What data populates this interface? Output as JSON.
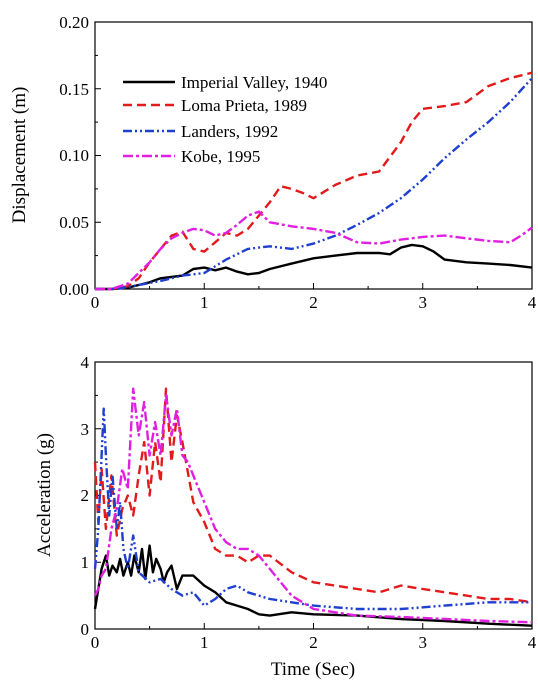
{
  "chart_data": [
    {
      "type": "line",
      "xlabel": "",
      "ylabel": "Displacement (m)",
      "xlim": [
        0,
        4
      ],
      "ylim": [
        0,
        0.2
      ],
      "xticks": [
        "0",
        "1",
        "2",
        "3",
        "4"
      ],
      "yticks": [
        "0.00",
        "0.05",
        "0.10",
        "0.15",
        "0.20"
      ],
      "grid": false,
      "legend_position": "top-left",
      "series": [
        {
          "name": "Imperial Valley, 1940",
          "color": "#000000",
          "dash": "solid",
          "x": [
            0,
            0.15,
            0.3,
            0.4,
            0.5,
            0.6,
            0.7,
            0.8,
            0.9,
            1.0,
            1.1,
            1.2,
            1.3,
            1.4,
            1.5,
            1.6,
            1.8,
            2.0,
            2.2,
            2.4,
            2.6,
            2.7,
            2.8,
            2.9,
            3.0,
            3.1,
            3.2,
            3.4,
            3.6,
            3.8,
            4.0
          ],
          "y": [
            0,
            0,
            0.001,
            0.003,
            0.005,
            0.008,
            0.009,
            0.01,
            0.015,
            0.016,
            0.014,
            0.016,
            0.013,
            0.011,
            0.012,
            0.015,
            0.019,
            0.023,
            0.025,
            0.027,
            0.027,
            0.026,
            0.031,
            0.033,
            0.032,
            0.028,
            0.022,
            0.02,
            0.019,
            0.018,
            0.016
          ]
        },
        {
          "name": "Loma Prieta, 1989",
          "color": "#e31a1c",
          "dash": "dashed",
          "x": [
            0,
            0.15,
            0.3,
            0.4,
            0.5,
            0.6,
            0.7,
            0.8,
            0.9,
            1.0,
            1.1,
            1.2,
            1.3,
            1.4,
            1.5,
            1.6,
            1.7,
            1.8,
            1.9,
            2.0,
            2.2,
            2.4,
            2.6,
            2.8,
            2.9,
            3.0,
            3.2,
            3.4,
            3.6,
            3.8,
            3.9,
            4.0
          ],
          "y": [
            0,
            0,
            0.002,
            0.008,
            0.02,
            0.03,
            0.04,
            0.043,
            0.03,
            0.028,
            0.035,
            0.042,
            0.04,
            0.045,
            0.055,
            0.065,
            0.077,
            0.075,
            0.072,
            0.068,
            0.078,
            0.085,
            0.088,
            0.11,
            0.125,
            0.135,
            0.137,
            0.14,
            0.152,
            0.158,
            0.16,
            0.162
          ]
        },
        {
          "name": "Landers, 1992",
          "color": "#1f3fd1",
          "dash": "dash-dot-dot",
          "x": [
            0,
            0.2,
            0.4,
            0.6,
            0.8,
            1.0,
            1.2,
            1.4,
            1.6,
            1.8,
            2.0,
            2.2,
            2.4,
            2.6,
            2.8,
            3.0,
            3.2,
            3.4,
            3.6,
            3.8,
            4.0
          ],
          "y": [
            0,
            0,
            0.003,
            0.006,
            0.01,
            0.012,
            0.022,
            0.03,
            0.032,
            0.03,
            0.034,
            0.04,
            0.048,
            0.057,
            0.068,
            0.082,
            0.098,
            0.112,
            0.125,
            0.14,
            0.158
          ]
        },
        {
          "name": "Kobe, 1995",
          "color": "#e020e0",
          "dash": "dash-dot",
          "x": [
            0,
            0.15,
            0.3,
            0.4,
            0.5,
            0.6,
            0.7,
            0.8,
            0.9,
            1.0,
            1.1,
            1.2,
            1.3,
            1.4,
            1.5,
            1.6,
            1.8,
            2.0,
            2.2,
            2.4,
            2.6,
            2.8,
            3.0,
            3.2,
            3.4,
            3.6,
            3.8,
            3.9,
            4.0
          ],
          "y": [
            0,
            0,
            0.004,
            0.012,
            0.02,
            0.03,
            0.038,
            0.042,
            0.045,
            0.044,
            0.04,
            0.042,
            0.048,
            0.055,
            0.058,
            0.05,
            0.047,
            0.045,
            0.042,
            0.035,
            0.034,
            0.037,
            0.039,
            0.04,
            0.038,
            0.036,
            0.035,
            0.04,
            0.046
          ]
        }
      ]
    },
    {
      "type": "line",
      "xlabel": "Time (Sec)",
      "ylabel": "Acceleration (g)",
      "xlim": [
        0,
        4
      ],
      "ylim": [
        0,
        4
      ],
      "xticks": [
        "0",
        "1",
        "2",
        "3",
        "4"
      ],
      "yticks": [
        "0",
        "1",
        "2",
        "3",
        "4"
      ],
      "grid": false,
      "series": [
        {
          "name": "Imperial Valley, 1940",
          "color": "#000000",
          "dash": "solid",
          "x": [
            0,
            0.03,
            0.06,
            0.1,
            0.13,
            0.16,
            0.2,
            0.23,
            0.26,
            0.3,
            0.33,
            0.36,
            0.4,
            0.43,
            0.46,
            0.5,
            0.53,
            0.56,
            0.6,
            0.63,
            0.66,
            0.7,
            0.75,
            0.8,
            0.9,
            1.0,
            1.1,
            1.2,
            1.3,
            1.4,
            1.5,
            1.6,
            1.8,
            2.0,
            2.4,
            2.8,
            3.2,
            3.6,
            4.0
          ],
          "y": [
            0.3,
            0.6,
            0.9,
            1.1,
            0.8,
            0.95,
            0.85,
            1.05,
            0.8,
            1.0,
            0.8,
            1.1,
            0.85,
            1.2,
            0.75,
            1.25,
            0.85,
            1.05,
            0.9,
            0.7,
            0.85,
            0.95,
            0.6,
            0.8,
            0.8,
            0.65,
            0.55,
            0.4,
            0.35,
            0.3,
            0.22,
            0.2,
            0.25,
            0.22,
            0.2,
            0.15,
            0.12,
            0.08,
            0.05
          ]
        },
        {
          "name": "Loma Prieta, 1989",
          "color": "#e31a1c",
          "dash": "dashed",
          "x": [
            0,
            0.03,
            0.06,
            0.1,
            0.15,
            0.2,
            0.25,
            0.3,
            0.35,
            0.4,
            0.45,
            0.5,
            0.55,
            0.6,
            0.65,
            0.7,
            0.75,
            0.8,
            0.9,
            1.0,
            1.1,
            1.2,
            1.3,
            1.4,
            1.5,
            1.6,
            1.8,
            2.0,
            2.2,
            2.4,
            2.6,
            2.8,
            3.0,
            3.2,
            3.4,
            3.6,
            3.8,
            4.0
          ],
          "y": [
            2.5,
            1.6,
            2.4,
            1.5,
            2.3,
            1.4,
            1.8,
            2.0,
            1.7,
            2.3,
            2.8,
            2.0,
            2.8,
            2.2,
            3.6,
            2.5,
            3.2,
            2.8,
            1.9,
            1.6,
            1.2,
            1.1,
            1.1,
            1.0,
            1.1,
            1.1,
            0.85,
            0.7,
            0.65,
            0.6,
            0.55,
            0.65,
            0.6,
            0.55,
            0.5,
            0.45,
            0.45,
            0.4
          ]
        },
        {
          "name": "Landers, 1992",
          "color": "#1f3fd1",
          "dash": "dash-dot-dot",
          "x": [
            0,
            0.03,
            0.06,
            0.08,
            0.1,
            0.13,
            0.16,
            0.2,
            0.23,
            0.26,
            0.3,
            0.35,
            0.4,
            0.5,
            0.6,
            0.7,
            0.8,
            0.9,
            1.0,
            1.1,
            1.2,
            1.3,
            1.4,
            1.6,
            1.8,
            2.0,
            2.4,
            2.8,
            3.2,
            3.6,
            4.0
          ],
          "y": [
            0.9,
            1.5,
            2.6,
            3.3,
            2.6,
            1.7,
            2.3,
            1.5,
            1.9,
            1.2,
            0.9,
            1.4,
            0.85,
            0.7,
            0.75,
            0.6,
            0.5,
            0.55,
            0.35,
            0.45,
            0.6,
            0.65,
            0.55,
            0.45,
            0.4,
            0.35,
            0.3,
            0.3,
            0.35,
            0.4,
            0.4
          ]
        },
        {
          "name": "Kobe, 1995",
          "color": "#e020e0",
          "dash": "dash-dot",
          "x": [
            0,
            0.03,
            0.06,
            0.1,
            0.15,
            0.2,
            0.25,
            0.3,
            0.35,
            0.4,
            0.45,
            0.5,
            0.55,
            0.6,
            0.65,
            0.7,
            0.75,
            0.8,
            0.85,
            0.9,
            1.0,
            1.1,
            1.2,
            1.3,
            1.4,
            1.5,
            1.6,
            1.8,
            2.0,
            2.4,
            2.8,
            3.2,
            3.6,
            4.0
          ],
          "y": [
            0.5,
            0.6,
            0.8,
            0.9,
            1.5,
            1.8,
            2.4,
            2.1,
            3.6,
            2.9,
            3.4,
            2.6,
            3.1,
            2.6,
            3.5,
            2.9,
            3.3,
            2.6,
            2.5,
            2.3,
            1.9,
            1.5,
            1.3,
            1.2,
            1.2,
            1.1,
            0.9,
            0.5,
            0.3,
            0.2,
            0.18,
            0.15,
            0.12,
            0.1
          ]
        }
      ]
    }
  ]
}
